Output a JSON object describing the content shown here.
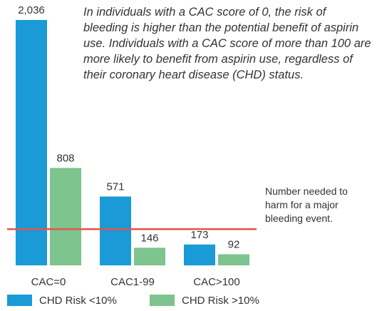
{
  "chart_data": {
    "type": "bar",
    "annotation": "In individuals with a CAC score of 0, the risk of bleeding is higher than the potential benefit of aspirin use. Individuals with a CAC score of more than 100 are more likely to benefit from aspirin use, regardless of their coronary heart disease (CHD) status.",
    "categories": [
      "CAC=0",
      "CAC1-99",
      "CAC>100"
    ],
    "series": [
      {
        "name": "CHD Risk <10%",
        "color": "#1a9ad6",
        "values": [
          2036,
          571,
          173
        ],
        "value_labels": [
          "2,036",
          "571",
          "173"
        ]
      },
      {
        "name": "CHD Risk >10%",
        "color": "#7dc48e",
        "values": [
          808,
          146,
          92
        ],
        "value_labels": [
          "808",
          "146",
          "92"
        ]
      }
    ],
    "reference_line": {
      "value": 300,
      "color": "#e8534a",
      "label": "Number needed to harm for a major bleeding event."
    },
    "ylim": [
      0,
      2036
    ]
  }
}
